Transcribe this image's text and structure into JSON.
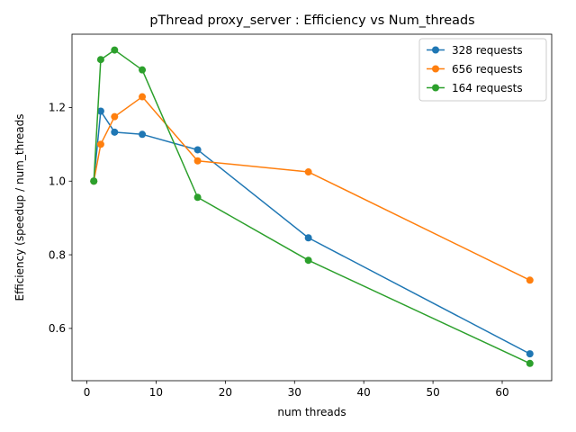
{
  "chart_data": {
    "type": "line",
    "title": "pThread proxy_server : Efficiency vs Num_threads",
    "xlabel": "num threads",
    "ylabel": "Efficiency (speedup / num_threads",
    "x": [
      1,
      2,
      4,
      8,
      16,
      32,
      64
    ],
    "xlim": [
      -2.15,
      67.15
    ],
    "ylim": [
      0.458,
      1.399
    ],
    "xticks": [
      0,
      10,
      20,
      30,
      40,
      50,
      60
    ],
    "yticks": [
      0.6,
      0.8,
      1.0,
      1.2
    ],
    "ytick_labels": [
      "0.6",
      "0.8",
      "1.0",
      "1.2"
    ],
    "grid": false,
    "legend_position": "top-right",
    "series": [
      {
        "name": "328 requests",
        "color": "#1f77b4",
        "values": [
          1.0,
          1.19,
          1.133,
          1.127,
          1.085,
          0.846,
          0.531
        ]
      },
      {
        "name": "656 requests",
        "color": "#ff7f0e",
        "values": [
          1.0,
          1.1,
          1.175,
          1.229,
          1.055,
          1.025,
          0.731
        ]
      },
      {
        "name": "164 requests",
        "color": "#2ca02c",
        "values": [
          1.0,
          1.33,
          1.356,
          1.302,
          0.956,
          0.785,
          0.505
        ]
      }
    ]
  }
}
